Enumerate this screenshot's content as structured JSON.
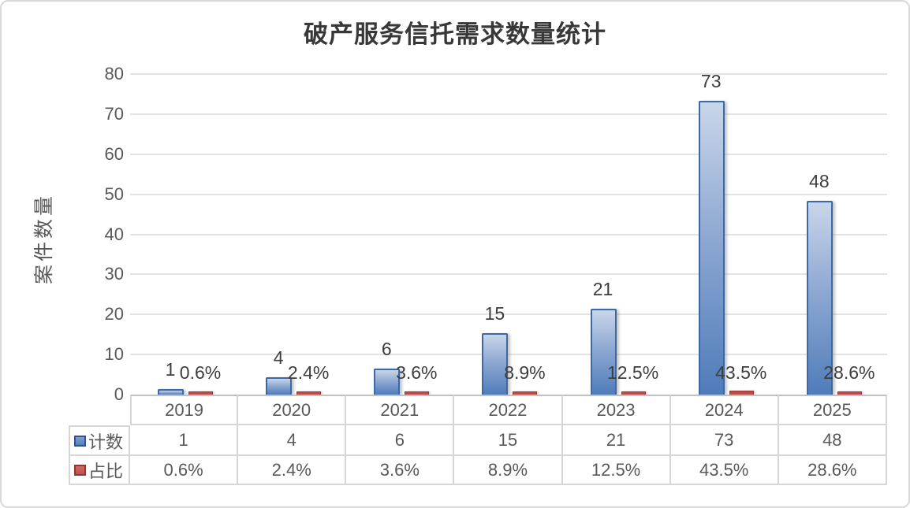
{
  "chart_data": {
    "type": "bar",
    "title": "破产服务信托需求数量统计",
    "xlabel": "",
    "ylabel": "案件数量",
    "ylim": [
      0,
      80
    ],
    "y_ticks": [
      0,
      10,
      20,
      30,
      40,
      50,
      60,
      70,
      80
    ],
    "grid": true,
    "legend_position": "data-table-left-keys",
    "categories": [
      "2019",
      "2020",
      "2021",
      "2022",
      "2023",
      "2024",
      "2025"
    ],
    "series": [
      {
        "name": "计数",
        "color": "#4F81BD",
        "values": [
          1,
          4,
          6,
          15,
          21,
          73,
          48
        ],
        "data_labels": [
          "1",
          "4",
          "6",
          "15",
          "21",
          "73",
          "48"
        ]
      },
      {
        "name": "占比",
        "color": "#C0504D",
        "values_percent": [
          0.6,
          2.4,
          3.6,
          8.9,
          12.5,
          43.5,
          28.6
        ],
        "data_labels": [
          "0.6%",
          "2.4%",
          "3.6%",
          "8.9%",
          "12.5%",
          "43.5%",
          "28.6%"
        ]
      }
    ],
    "data_table": {
      "show_legend_keys": true,
      "row_headers": [
        "计数",
        "占比"
      ],
      "rows": [
        [
          "1",
          "4",
          "6",
          "15",
          "21",
          "73",
          "48"
        ],
        [
          "0.6%",
          "2.4%",
          "3.6%",
          "8.9%",
          "12.5%",
          "43.5%",
          "28.6%"
        ]
      ]
    }
  },
  "colors": {
    "bar_blue_fill_top": "#C9D6E9",
    "bar_blue_fill_bottom": "#4F7CBA",
    "bar_blue_border": "#3B68A7",
    "bar_red_fill": "#BE4B48",
    "bar_red_border": "#943634",
    "gridline": "#E3E3E3",
    "axis_text": "#595959",
    "data_label_text": "#3D3D3D",
    "frame_border": "#D9D9D9"
  }
}
